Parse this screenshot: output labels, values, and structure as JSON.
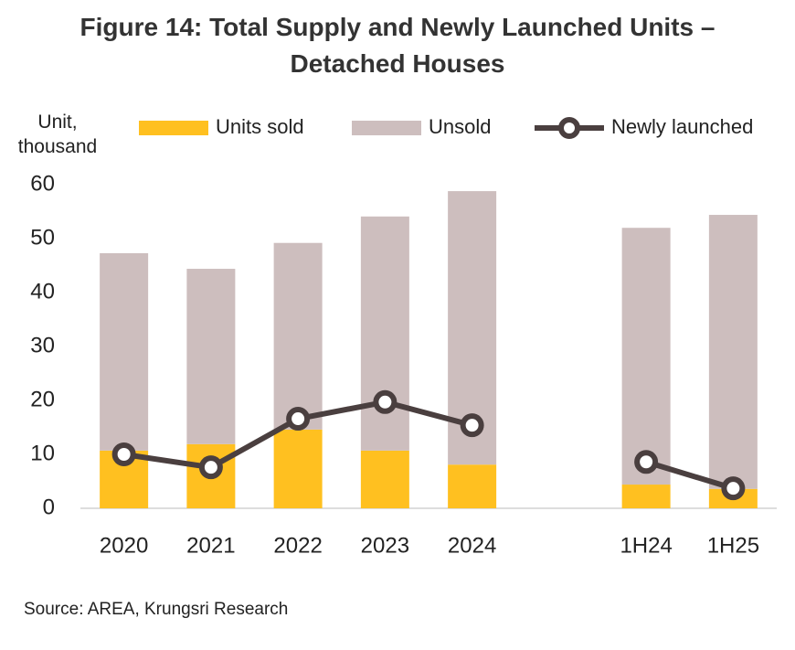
{
  "chart_data": {
    "type": "bar-line",
    "title": "Figure 14: Total Supply and Newly Launched Units – Detached Houses",
    "y_axis_label": "Unit, thousand",
    "source": "Source: AREA, Krungsri Research",
    "categories": [
      "2020",
      "2021",
      "2022",
      "2023",
      "2024",
      null,
      "1H24",
      "1H25"
    ],
    "series": [
      {
        "name": "Units sold",
        "color": "#ffc020",
        "values": [
          10.7,
          11.9,
          14.6,
          10.7,
          8.1,
          null,
          4.4,
          3.6
        ]
      },
      {
        "name": "Unsold",
        "color": "#cdbebe",
        "values": [
          36.6,
          32.5,
          34.6,
          43.4,
          50.7,
          null,
          47.6,
          50.8
        ]
      },
      {
        "name": "Newly launched",
        "color": "#4a3f3f",
        "type": "line",
        "values": [
          10.0,
          7.6,
          16.6,
          19.7,
          15.4,
          null,
          8.6,
          3.7
        ]
      }
    ],
    "ylim": [
      0,
      60
    ],
    "yticks": [
      0,
      10,
      20,
      30,
      40,
      50,
      60
    ],
    "grid": false,
    "legend": "top"
  }
}
